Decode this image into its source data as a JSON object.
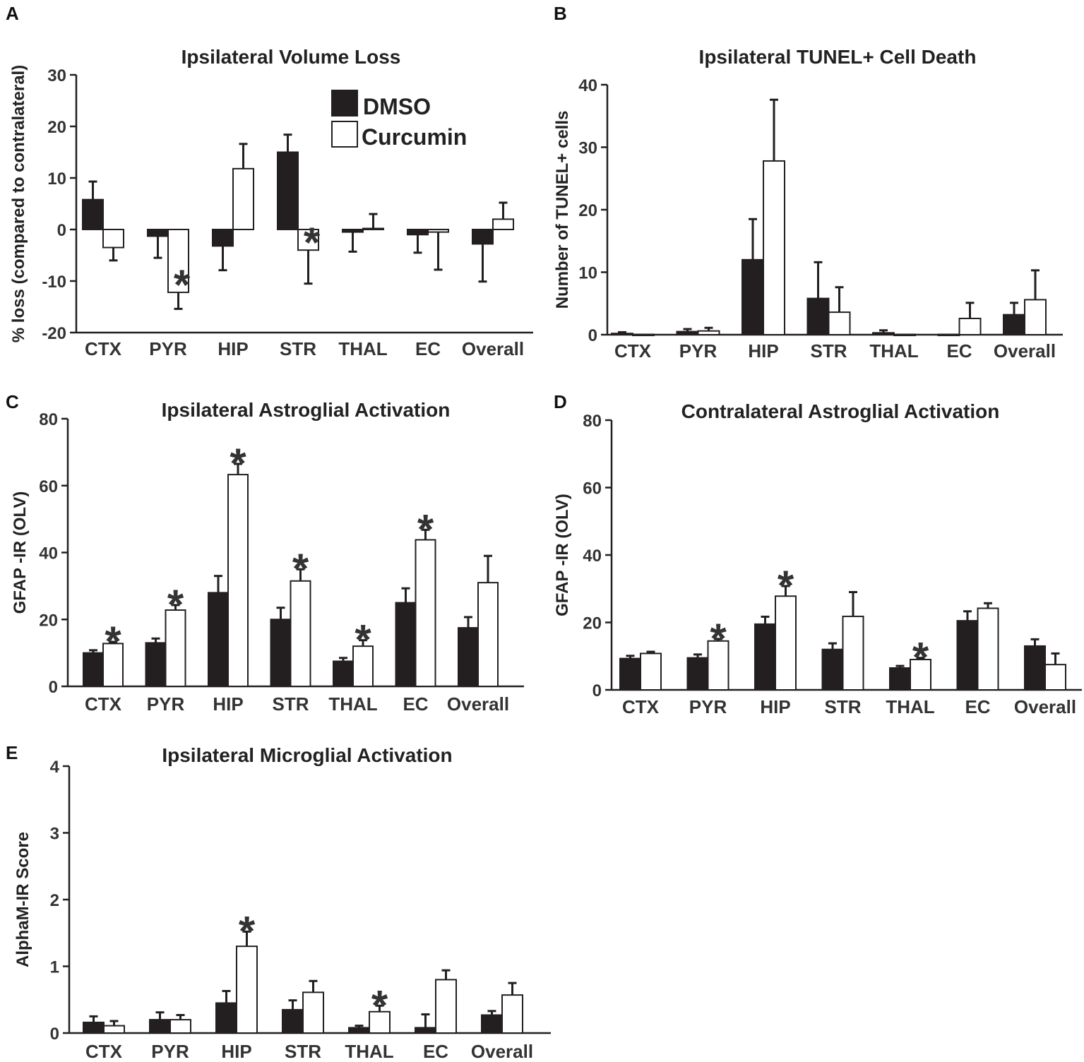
{
  "figure": {
    "colors": {
      "dmso": "#231f20",
      "curcumin": "#ffffff",
      "axis": "#231f20"
    },
    "legend": {
      "dmso_label": "DMSO",
      "curcumin_label": "Curcumin"
    }
  },
  "chart_data": [
    {
      "panel": "A",
      "type": "bar",
      "title": "Ipsilateral Volume Loss",
      "ylabel": "% loss (compared to contralateral)",
      "xlabel": "",
      "ylim": [
        -20,
        30
      ],
      "yticks": [
        -20,
        -10,
        0,
        10,
        20,
        30
      ],
      "yticklabels": [
        "-20",
        "-10",
        "0",
        "10",
        "20",
        "30"
      ],
      "categories": [
        "CTX",
        "PYR",
        "HIP",
        "STR",
        "THAL",
        "EC",
        "Overall"
      ],
      "series": [
        {
          "name": "DMSO",
          "values": [
            5.8,
            -1.3,
            -3.2,
            15.0,
            -0.5,
            -1.0,
            -2.8
          ],
          "errors": [
            3.5,
            4.2,
            4.7,
            3.4,
            3.8,
            3.5,
            7.3
          ]
        },
        {
          "name": "Curcumin",
          "values": [
            -3.5,
            -12.2,
            11.8,
            -4.0,
            0.2,
            -0.5,
            2.0
          ],
          "errors": [
            2.5,
            3.2,
            4.8,
            6.5,
            2.8,
            7.3,
            3.2
          ]
        }
      ],
      "significance": [
        "",
        "*",
        "",
        "*",
        "",
        "",
        ""
      ],
      "legend": "top-right"
    },
    {
      "panel": "B",
      "type": "bar",
      "title": "Ipsilateral TUNEL+ Cell Death",
      "ylabel": "Number of TUNEL+ cells",
      "xlabel": "",
      "ylim": [
        0,
        40
      ],
      "yticks": [
        0,
        10,
        20,
        30,
        40
      ],
      "yticklabels": [
        "0",
        "10",
        "20",
        "30",
        "40"
      ],
      "categories": [
        "CTX",
        "PYR",
        "HIP",
        "STR",
        "THAL",
        "EC",
        "Overall"
      ],
      "series": [
        {
          "name": "DMSO",
          "values": [
            0.2,
            0.5,
            12.0,
            5.8,
            0.3,
            0.05,
            3.2
          ],
          "errors": [
            0.2,
            0.4,
            6.5,
            5.8,
            0.4,
            0,
            1.9
          ]
        },
        {
          "name": "Curcumin",
          "values": [
            0.05,
            0.6,
            27.8,
            3.6,
            0.05,
            2.6,
            5.6
          ],
          "errors": [
            0,
            0.5,
            9.8,
            4.0,
            0,
            2.5,
            4.7
          ]
        }
      ],
      "significance": [
        "",
        "",
        "",
        "",
        "",
        "",
        ""
      ]
    },
    {
      "panel": "C",
      "type": "bar",
      "title": "Ipsilateral Astroglial Activation",
      "ylabel": "GFAP -IR (OLV)",
      "xlabel": "",
      "ylim": [
        0,
        80
      ],
      "yticks": [
        0,
        20,
        40,
        60,
        80
      ],
      "yticklabels": [
        "0",
        "20",
        "40",
        "60",
        "80"
      ],
      "categories": [
        "CTX",
        "PYR",
        "HIP",
        "STR",
        "THAL",
        "EC",
        "Overall"
      ],
      "series": [
        {
          "name": "DMSO",
          "values": [
            10.0,
            13.0,
            28.0,
            20.0,
            7.5,
            25.0,
            17.5
          ],
          "errors": [
            0.8,
            1.3,
            5.0,
            3.5,
            1.0,
            4.3,
            3.2
          ]
        },
        {
          "name": "Curcumin",
          "values": [
            12.8,
            22.8,
            63.3,
            31.5,
            12.0,
            43.8,
            31.0
          ],
          "errors": [
            0.5,
            1.5,
            3.2,
            3.5,
            1.8,
            3.0,
            8.0
          ]
        }
      ],
      "significance": [
        "*",
        "*",
        "*",
        "*",
        "*",
        "*",
        ""
      ]
    },
    {
      "panel": "D",
      "type": "bar",
      "title": "Contralateral Astroglial Activation",
      "ylabel": "GFAP -IR (OLV)",
      "xlabel": "",
      "ylim": [
        0,
        80
      ],
      "yticks": [
        0,
        20,
        40,
        60,
        80
      ],
      "yticklabels": [
        "0",
        "20",
        "40",
        "60",
        "80"
      ],
      "categories": [
        "CTX",
        "PYR",
        "HIP",
        "STR",
        "THAL",
        "EC",
        "Overall"
      ],
      "series": [
        {
          "name": "DMSO",
          "values": [
            9.3,
            9.5,
            19.5,
            12.0,
            6.5,
            20.5,
            13.0
          ],
          "errors": [
            0.8,
            1.0,
            2.2,
            1.8,
            0.6,
            2.8,
            2.0
          ]
        },
        {
          "name": "Curcumin",
          "values": [
            10.8,
            14.5,
            27.8,
            21.8,
            9.0,
            24.2,
            7.5
          ],
          "errors": [
            0.5,
            0.6,
            3.0,
            7.2,
            0.5,
            1.5,
            3.3
          ]
        }
      ],
      "significance": [
        "",
        "*",
        "*",
        "",
        "*",
        "",
        ""
      ]
    },
    {
      "panel": "E",
      "type": "bar",
      "title": "Ipsilateral Microglial Activation",
      "ylabel": "AlphaM-IR Score",
      "xlabel": "",
      "ylim": [
        0,
        4
      ],
      "yticks": [
        0,
        1,
        2,
        3,
        4
      ],
      "yticklabels": [
        "0",
        "1",
        "2",
        "3",
        "4"
      ],
      "categories": [
        "CTX",
        "PYR",
        "HIP",
        "STR",
        "THAL",
        "EC",
        "Overall"
      ],
      "series": [
        {
          "name": "DMSO",
          "values": [
            0.16,
            0.2,
            0.45,
            0.35,
            0.08,
            0.08,
            0.27
          ],
          "errors": [
            0.09,
            0.11,
            0.18,
            0.14,
            0.03,
            0.2,
            0.06
          ]
        },
        {
          "name": "Curcumin",
          "values": [
            0.11,
            0.2,
            1.3,
            0.61,
            0.32,
            0.8,
            0.57
          ],
          "errors": [
            0.07,
            0.07,
            0.22,
            0.17,
            0.09,
            0.14,
            0.18
          ]
        }
      ],
      "significance": [
        "",
        "",
        "*",
        "",
        "*",
        "",
        ""
      ]
    }
  ]
}
